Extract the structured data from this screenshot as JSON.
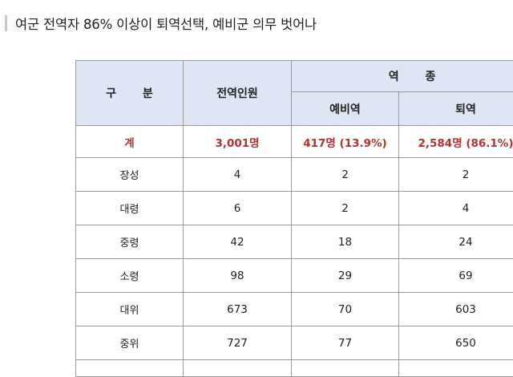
{
  "headline": "여군 전역자 86% 이상이 퇴역선택, 예비군 의무 벗어나",
  "table": {
    "header": {
      "category": "구 분",
      "discharged": "전역인원",
      "type_group": "역 종",
      "reserve": "예비역",
      "retired": "퇴역"
    },
    "total": {
      "label": "계",
      "discharged": "3,001명",
      "reserve": "417명 (13.9%)",
      "retired": "2,584명 (86.1%)"
    },
    "rows": [
      {
        "rank": "장성",
        "discharged": "4",
        "reserve": "2",
        "retired": "2"
      },
      {
        "rank": "대령",
        "discharged": "6",
        "reserve": "2",
        "retired": "4"
      },
      {
        "rank": "중령",
        "discharged": "42",
        "reserve": "18",
        "retired": "24"
      },
      {
        "rank": "소령",
        "discharged": "98",
        "reserve": "29",
        "retired": "69"
      },
      {
        "rank": "대위",
        "discharged": "673",
        "reserve": "70",
        "retired": "603"
      },
      {
        "rank": "중위",
        "discharged": "727",
        "reserve": "77",
        "retired": "650"
      }
    ]
  }
}
